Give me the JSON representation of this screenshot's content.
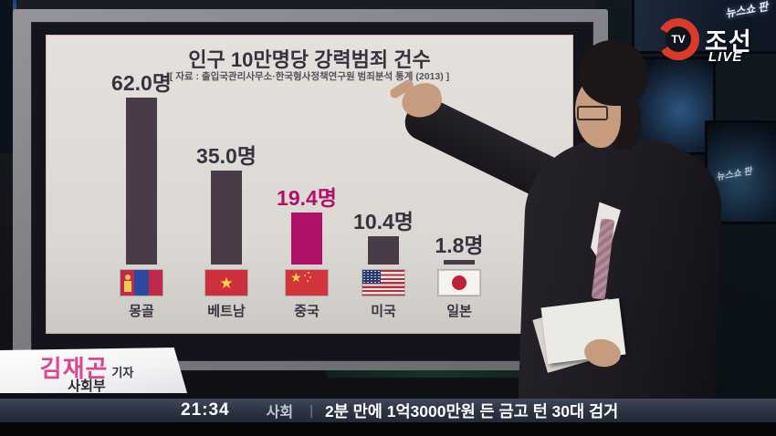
{
  "broadcast": {
    "channel": {
      "tv_mark": "TV",
      "name": "조선",
      "live": "LIVE"
    },
    "show_logo": "뉴스쇼 판",
    "reporter": {
      "name": "김재곤",
      "title": "기자",
      "department": "사회부"
    },
    "ticker": {
      "time": "21:34",
      "category": "사회",
      "divider": "|",
      "headline": "2분 만에 1억3000만원 든 금고 턴 30대 검거"
    }
  },
  "chart_data": {
    "type": "bar",
    "title": "인구 10만명당 강력범죄 건수",
    "source": "[ 자료 : 출입국관리사무소·한국형사정책연구원 범죄분석 통계 (2013) ]",
    "unit": "명",
    "categories": [
      "몽골",
      "베트남",
      "중국",
      "미국",
      "일본"
    ],
    "values": [
      62.0,
      35.0,
      19.4,
      10.4,
      1.8
    ],
    "value_labels": [
      "62.0명",
      "35.0명",
      "19.4명",
      "10.4명",
      "1.8명"
    ],
    "flags": [
      "mongolia",
      "vietnam",
      "china",
      "usa",
      "japan"
    ],
    "highlight_index": 2,
    "colors": {
      "bar": "#4a3b48",
      "highlight_bar": "#b1116b",
      "label": "#3a3140",
      "highlight_label": "#b1116b"
    },
    "ylim": [
      0,
      65
    ],
    "grid": false,
    "legend": false
  }
}
